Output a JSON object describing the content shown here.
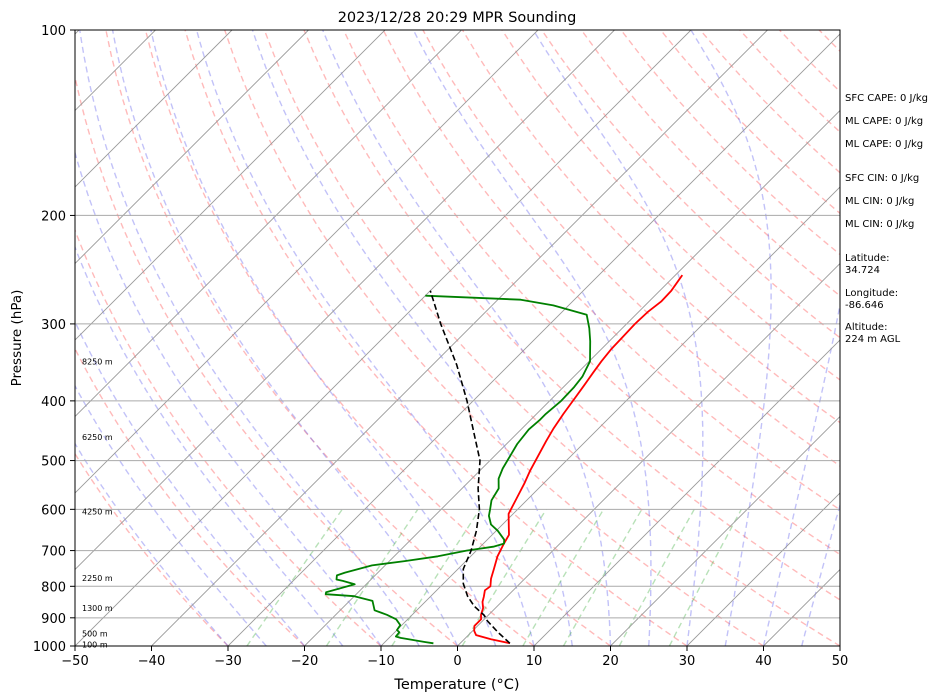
{
  "chart_data": {
    "type": "line",
    "subtype": "skew-t log-p sounding",
    "title": "2023/12/28 20:29 MPR Sounding",
    "xlabel": "Temperature (°C)",
    "ylabel": "Pressure (hPa)",
    "xlim": [
      -50,
      50
    ],
    "ylim": [
      1000,
      100
    ],
    "yscale": "log",
    "x_ticks": [
      -50,
      -40,
      -30,
      -20,
      -10,
      0,
      10,
      20,
      30,
      40,
      50
    ],
    "x_tick_labels": [
      "−50",
      "−40",
      "−30",
      "−20",
      "−10",
      "0",
      "10",
      "20",
      "30",
      "40",
      "50"
    ],
    "y_ticks": [
      1000,
      900,
      800,
      700,
      600,
      500,
      400,
      300,
      200,
      100
    ],
    "y_tick_labels": [
      "1000",
      "900",
      "800",
      "700",
      "600",
      "500",
      "400",
      "300",
      "200",
      "100"
    ],
    "isobar_gridlines": [
      900,
      800,
      700,
      600,
      500,
      400,
      300,
      200
    ],
    "height_labels": [
      {
        "text": "100 m",
        "p": 995
      },
      {
        "text": "500 m",
        "p": 955
      },
      {
        "text": "1300 m",
        "p": 868
      },
      {
        "text": "2250 m",
        "p": 775
      },
      {
        "text": "4250 m",
        "p": 605
      },
      {
        "text": "6250 m",
        "p": 458
      },
      {
        "text": "8250 m",
        "p": 345
      }
    ],
    "series": [
      {
        "color": "#ff0000",
        "style": "solid",
        "points": [
          [
            6.5,
            990
          ],
          [
            3.5,
            975
          ],
          [
            1,
            960
          ],
          [
            0.2,
            945
          ],
          [
            -0.4,
            928
          ],
          [
            -0.4,
            905
          ],
          [
            -1,
            890
          ],
          [
            -1.6,
            868
          ],
          [
            -2.5,
            848
          ],
          [
            -3,
            832
          ],
          [
            -3.7,
            812
          ],
          [
            -3.5,
            800
          ],
          [
            -4.4,
            778
          ],
          [
            -5.3,
            750
          ],
          [
            -6.5,
            715
          ],
          [
            -7.3,
            683
          ],
          [
            -7.8,
            660
          ],
          [
            -8.9,
            640
          ],
          [
            -10.6,
            610
          ],
          [
            -11.6,
            575
          ],
          [
            -12.5,
            545
          ],
          [
            -13.4,
            520
          ],
          [
            -14.3,
            492
          ],
          [
            -15.2,
            465
          ],
          [
            -15.9,
            443
          ],
          [
            -16.5,
            420
          ],
          [
            -17,
            398
          ],
          [
            -17.5,
            378
          ],
          [
            -18,
            360
          ],
          [
            -18.4,
            345
          ],
          [
            -18.7,
            330
          ],
          [
            -18.8,
            315
          ],
          [
            -18.9,
            300
          ],
          [
            -18.8,
            287
          ],
          [
            -18.4,
            276
          ],
          [
            -18.5,
            265
          ],
          [
            -19.1,
            250
          ]
        ]
      },
      {
        "color": "#008000",
        "style": "solid",
        "points": [
          [
            -3.5,
            990
          ],
          [
            -4.8,
            985
          ],
          [
            -8.5,
            970
          ],
          [
            -9.3,
            965
          ],
          [
            -9.4,
            950
          ],
          [
            -10,
            942
          ],
          [
            -10.2,
            925
          ],
          [
            -11.5,
            905
          ],
          [
            -13.3,
            890
          ],
          [
            -15.5,
            875
          ],
          [
            -16.5,
            855
          ],
          [
            -17,
            845
          ],
          [
            -20,
            830
          ],
          [
            -24,
            824
          ],
          [
            -24.2,
            818
          ],
          [
            -21.5,
            794
          ],
          [
            -23.5,
            784
          ],
          [
            -24.5,
            780
          ],
          [
            -25,
            768
          ],
          [
            -24.3,
            760
          ],
          [
            -21.7,
            740
          ],
          [
            -18,
            728
          ],
          [
            -14.3,
            715
          ],
          [
            -11.3,
            700
          ],
          [
            -8.3,
            690
          ],
          [
            -7.3,
            682
          ],
          [
            -7.8,
            672
          ],
          [
            -9.8,
            650
          ],
          [
            -11.5,
            635
          ],
          [
            -12.9,
            615
          ],
          [
            -13.6,
            600
          ],
          [
            -14.6,
            580
          ],
          [
            -15.2,
            555
          ],
          [
            -16.5,
            535
          ],
          [
            -17.3,
            515
          ],
          [
            -18,
            490
          ],
          [
            -18.6,
            470
          ],
          [
            -19,
            445
          ],
          [
            -18.8,
            430
          ],
          [
            -18.8,
            420
          ],
          [
            -18.5,
            400
          ],
          [
            -18.6,
            380
          ],
          [
            -18.9,
            365
          ],
          [
            -19.9,
            345
          ],
          [
            -22.5,
            320
          ],
          [
            -24.3,
            305
          ],
          [
            -26.4,
            290
          ],
          [
            -32,
            280
          ],
          [
            -37,
            274
          ],
          [
            -50,
            270
          ]
        ]
      },
      {
        "color": "#000000",
        "style": "dashed",
        "points": [
          [
            6.5,
            990
          ],
          [
            3.5,
            950
          ],
          [
            0.6,
            910
          ],
          [
            -0.5,
            892
          ],
          [
            -3,
            862
          ],
          [
            -5.2,
            830
          ],
          [
            -7.4,
            792
          ],
          [
            -9.3,
            750
          ],
          [
            -10.7,
            700
          ],
          [
            -12.6,
            650
          ],
          [
            -15,
            600
          ],
          [
            -17.9,
            555
          ],
          [
            -21.3,
            500
          ],
          [
            -25.8,
            450
          ],
          [
            -30.8,
            400
          ],
          [
            -36.8,
            350
          ],
          [
            -44.3,
            300
          ],
          [
            -50,
            265
          ]
        ]
      }
    ]
  },
  "stats_panel": {
    "sfc_cape": "SFC CAPE: 0 J/kg",
    "ml_cape_1": "ML CAPE: 0 J/kg",
    "ml_cape_2": "ML CAPE: 0 J/kg",
    "sfc_cin": "SFC CIN: 0 J/kg",
    "ml_cin_1": "ML CIN: 0 J/kg",
    "ml_cin_2": "ML CIN: 0 J/kg",
    "latitude": "Latitude:\n34.724",
    "longitude": "Longitude:\n-86.646",
    "altitude": "Altitude:\n224 m AGL"
  }
}
